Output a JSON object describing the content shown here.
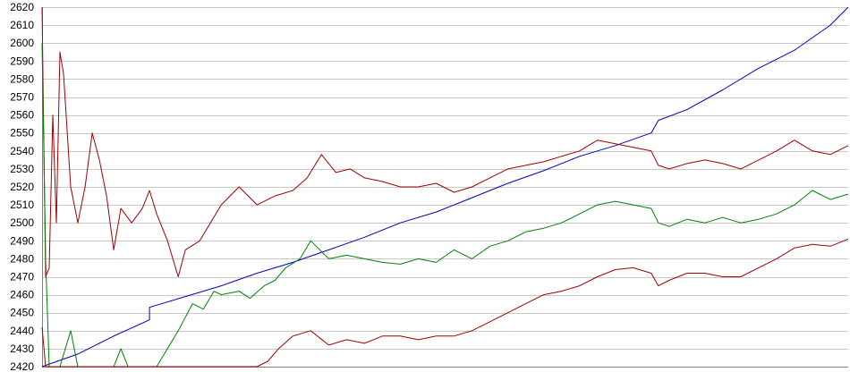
{
  "chart_data": {
    "type": "line",
    "title": "",
    "xlabel": "",
    "ylabel": "",
    "ylim": [
      2420,
      2620
    ],
    "xlim": [
      0,
      225
    ],
    "grid": true,
    "legend": "none",
    "y_ticks": [
      2620,
      2610,
      2600,
      2590,
      2580,
      2570,
      2560,
      2550,
      2540,
      2530,
      2520,
      2510,
      2500,
      2490,
      2480,
      2470,
      2460,
      2450,
      2440,
      2430,
      2420
    ],
    "series": [
      {
        "color": "#0000c0",
        "points": [
          [
            0,
            2420
          ],
          [
            10,
            2427
          ],
          [
            20,
            2437
          ],
          [
            30,
            2446
          ],
          [
            30,
            2453
          ],
          [
            40,
            2459
          ],
          [
            50,
            2465
          ],
          [
            60,
            2472
          ],
          [
            70,
            2478
          ],
          [
            80,
            2485
          ],
          [
            90,
            2492
          ],
          [
            100,
            2500
          ],
          [
            110,
            2506
          ],
          [
            120,
            2514
          ],
          [
            130,
            2522
          ],
          [
            140,
            2529
          ],
          [
            150,
            2537
          ],
          [
            160,
            2543
          ],
          [
            170,
            2550
          ],
          [
            172,
            2557
          ],
          [
            180,
            2563
          ],
          [
            190,
            2574
          ],
          [
            200,
            2586
          ],
          [
            210,
            2596
          ],
          [
            220,
            2610
          ],
          [
            225,
            2620
          ]
        ]
      },
      {
        "color": "#a00000",
        "points": [
          [
            0,
            2620
          ],
          [
            1,
            2470
          ],
          [
            2,
            2475
          ],
          [
            3,
            2560
          ],
          [
            4,
            2500
          ],
          [
            5,
            2595
          ],
          [
            6,
            2583
          ],
          [
            8,
            2520
          ],
          [
            10,
            2500
          ],
          [
            12,
            2520
          ],
          [
            14,
            2550
          ],
          [
            16,
            2535
          ],
          [
            18,
            2515
          ],
          [
            20,
            2485
          ],
          [
            22,
            2508
          ],
          [
            25,
            2500
          ],
          [
            28,
            2508
          ],
          [
            30,
            2518
          ],
          [
            32,
            2505
          ],
          [
            35,
            2490
          ],
          [
            38,
            2470
          ],
          [
            40,
            2485
          ],
          [
            44,
            2490
          ],
          [
            50,
            2510
          ],
          [
            55,
            2520
          ],
          [
            60,
            2510
          ],
          [
            65,
            2515
          ],
          [
            70,
            2518
          ],
          [
            74,
            2525
          ],
          [
            78,
            2538
          ],
          [
            82,
            2528
          ],
          [
            86,
            2530
          ],
          [
            90,
            2525
          ],
          [
            95,
            2523
          ],
          [
            100,
            2520
          ],
          [
            105,
            2520
          ],
          [
            110,
            2522
          ],
          [
            115,
            2517
          ],
          [
            120,
            2520
          ],
          [
            125,
            2525
          ],
          [
            130,
            2530
          ],
          [
            135,
            2532
          ],
          [
            140,
            2534
          ],
          [
            145,
            2537
          ],
          [
            150,
            2540
          ],
          [
            155,
            2546
          ],
          [
            160,
            2544
          ],
          [
            165,
            2542
          ],
          [
            170,
            2540
          ],
          [
            172,
            2532
          ],
          [
            175,
            2530
          ],
          [
            180,
            2533
          ],
          [
            185,
            2535
          ],
          [
            190,
            2533
          ],
          [
            195,
            2530
          ],
          [
            200,
            2535
          ],
          [
            205,
            2540
          ],
          [
            210,
            2546
          ],
          [
            215,
            2540
          ],
          [
            220,
            2538
          ],
          [
            225,
            2543
          ]
        ]
      },
      {
        "color": "#008000",
        "points": [
          [
            0,
            2600
          ],
          [
            1,
            2480
          ],
          [
            2,
            2420
          ],
          [
            5,
            2420
          ],
          [
            8,
            2440
          ],
          [
            10,
            2420
          ],
          [
            20,
            2420
          ],
          [
            22,
            2430
          ],
          [
            24,
            2420
          ],
          [
            30,
            2420
          ],
          [
            32,
            2420
          ],
          [
            38,
            2440
          ],
          [
            42,
            2455
          ],
          [
            45,
            2452
          ],
          [
            48,
            2462
          ],
          [
            50,
            2460
          ],
          [
            55,
            2462
          ],
          [
            58,
            2458
          ],
          [
            62,
            2465
          ],
          [
            65,
            2468
          ],
          [
            68,
            2475
          ],
          [
            72,
            2480
          ],
          [
            75,
            2490
          ],
          [
            80,
            2480
          ],
          [
            85,
            2482
          ],
          [
            90,
            2480
          ],
          [
            95,
            2478
          ],
          [
            100,
            2477
          ],
          [
            105,
            2480
          ],
          [
            110,
            2478
          ],
          [
            115,
            2485
          ],
          [
            120,
            2480
          ],
          [
            125,
            2487
          ],
          [
            130,
            2490
          ],
          [
            135,
            2495
          ],
          [
            140,
            2497
          ],
          [
            145,
            2500
          ],
          [
            150,
            2505
          ],
          [
            155,
            2510
          ],
          [
            160,
            2512
          ],
          [
            165,
            2510
          ],
          [
            170,
            2508
          ],
          [
            172,
            2500
          ],
          [
            175,
            2498
          ],
          [
            180,
            2502
          ],
          [
            185,
            2500
          ],
          [
            190,
            2503
          ],
          [
            195,
            2500
          ],
          [
            200,
            2502
          ],
          [
            205,
            2505
          ],
          [
            210,
            2510
          ],
          [
            215,
            2518
          ],
          [
            220,
            2513
          ],
          [
            225,
            2516
          ]
        ]
      },
      {
        "color": "#a00000",
        "points": [
          [
            0,
            2442
          ],
          [
            1,
            2420
          ],
          [
            3,
            2420
          ],
          [
            60,
            2420
          ],
          [
            63,
            2423
          ],
          [
            66,
            2430
          ],
          [
            70,
            2437
          ],
          [
            75,
            2440
          ],
          [
            80,
            2432
          ],
          [
            85,
            2435
          ],
          [
            90,
            2433
          ],
          [
            95,
            2437
          ],
          [
            100,
            2437
          ],
          [
            105,
            2435
          ],
          [
            110,
            2437
          ],
          [
            115,
            2437
          ],
          [
            120,
            2440
          ],
          [
            125,
            2445
          ],
          [
            130,
            2450
          ],
          [
            135,
            2455
          ],
          [
            140,
            2460
          ],
          [
            145,
            2462
          ],
          [
            150,
            2465
          ],
          [
            155,
            2470
          ],
          [
            160,
            2474
          ],
          [
            165,
            2475
          ],
          [
            170,
            2472
          ],
          [
            172,
            2465
          ],
          [
            175,
            2468
          ],
          [
            180,
            2472
          ],
          [
            185,
            2472
          ],
          [
            190,
            2470
          ],
          [
            195,
            2470
          ],
          [
            200,
            2475
          ],
          [
            205,
            2480
          ],
          [
            210,
            2486
          ],
          [
            215,
            2488
          ],
          [
            220,
            2487
          ],
          [
            225,
            2491
          ]
        ]
      }
    ]
  }
}
